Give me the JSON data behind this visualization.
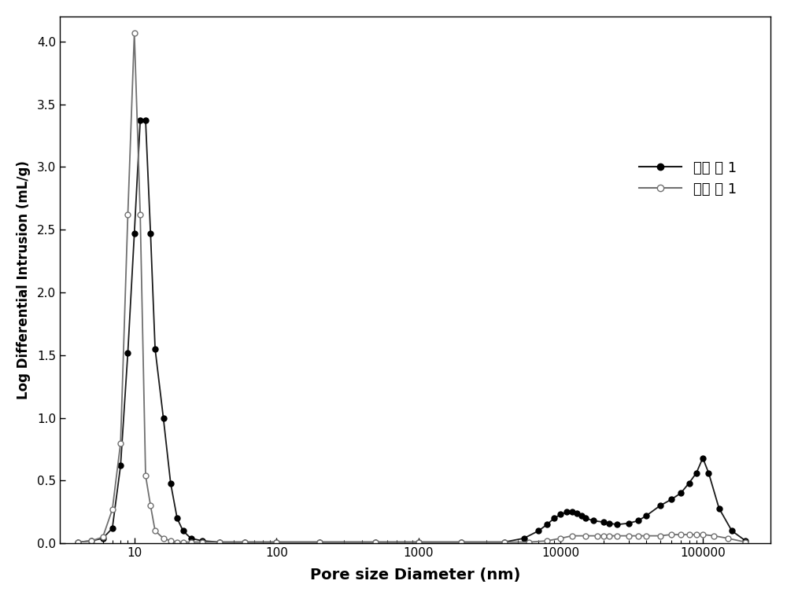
{
  "series1_x": [
    4,
    5,
    6,
    7,
    8,
    9,
    10,
    11,
    12,
    13,
    14,
    16,
    18,
    20,
    22,
    25,
    30,
    40,
    60,
    100,
    200,
    500,
    1000,
    2000,
    4000,
    5500,
    7000,
    8000,
    9000,
    10000,
    11000,
    12000,
    13000,
    14000,
    15000,
    17000,
    20000,
    22000,
    25000,
    30000,
    35000,
    40000,
    50000,
    60000,
    70000,
    80000,
    90000,
    100000,
    110000,
    130000,
    160000,
    200000
  ],
  "series1_y": [
    0.01,
    0.02,
    0.04,
    0.12,
    0.62,
    1.52,
    2.47,
    3.37,
    3.37,
    2.47,
    1.55,
    1.0,
    0.48,
    0.2,
    0.1,
    0.04,
    0.02,
    0.01,
    0.01,
    0.01,
    0.01,
    0.01,
    0.01,
    0.01,
    0.01,
    0.04,
    0.1,
    0.15,
    0.2,
    0.23,
    0.25,
    0.25,
    0.24,
    0.22,
    0.2,
    0.18,
    0.17,
    0.16,
    0.15,
    0.16,
    0.18,
    0.22,
    0.3,
    0.35,
    0.4,
    0.48,
    0.56,
    0.68,
    0.56,
    0.28,
    0.1,
    0.02
  ],
  "series2_x": [
    4,
    5,
    6,
    7,
    8,
    9,
    10,
    11,
    12,
    13,
    14,
    16,
    18,
    20,
    22,
    25,
    30,
    40,
    60,
    100,
    200,
    500,
    1000,
    2000,
    4000,
    6000,
    8000,
    10000,
    12000,
    15000,
    18000,
    20000,
    22000,
    25000,
    30000,
    35000,
    40000,
    50000,
    60000,
    70000,
    80000,
    90000,
    100000,
    120000,
    150000,
    200000
  ],
  "series2_y": [
    0.01,
    0.02,
    0.05,
    0.27,
    0.8,
    2.62,
    4.07,
    2.62,
    0.54,
    0.3,
    0.1,
    0.04,
    0.02,
    0.01,
    0.01,
    0.01,
    0.01,
    0.01,
    0.01,
    0.01,
    0.01,
    0.01,
    0.01,
    0.01,
    0.01,
    0.01,
    0.02,
    0.04,
    0.06,
    0.06,
    0.06,
    0.06,
    0.06,
    0.06,
    0.06,
    0.06,
    0.06,
    0.06,
    0.07,
    0.07,
    0.07,
    0.07,
    0.07,
    0.06,
    0.04,
    0.01
  ],
  "xlabel": "Pore size Diameter (nm)",
  "ylabel": "Log Differential Intrusion (mL/g)",
  "xlim_low": 3,
  "xlim_high": 300000,
  "ylim_low": 0,
  "ylim_high": 4.2,
  "legend1": "实施 例 1",
  "legend2": "对比 例 1",
  "yticks": [
    0.0,
    0.5,
    1.0,
    1.5,
    2.0,
    2.5,
    3.0,
    3.5,
    4.0
  ],
  "xtick_vals": [
    10,
    100,
    1000,
    10000,
    100000
  ],
  "xtick_labels": [
    "10",
    "100",
    "1000",
    "10000",
    "100000"
  ],
  "line_color1": "#1a1a1a",
  "line_color2": "#707070",
  "bg_color": "#ffffff",
  "figwidth": 10.0,
  "figheight": 7.62,
  "dpi": 100
}
